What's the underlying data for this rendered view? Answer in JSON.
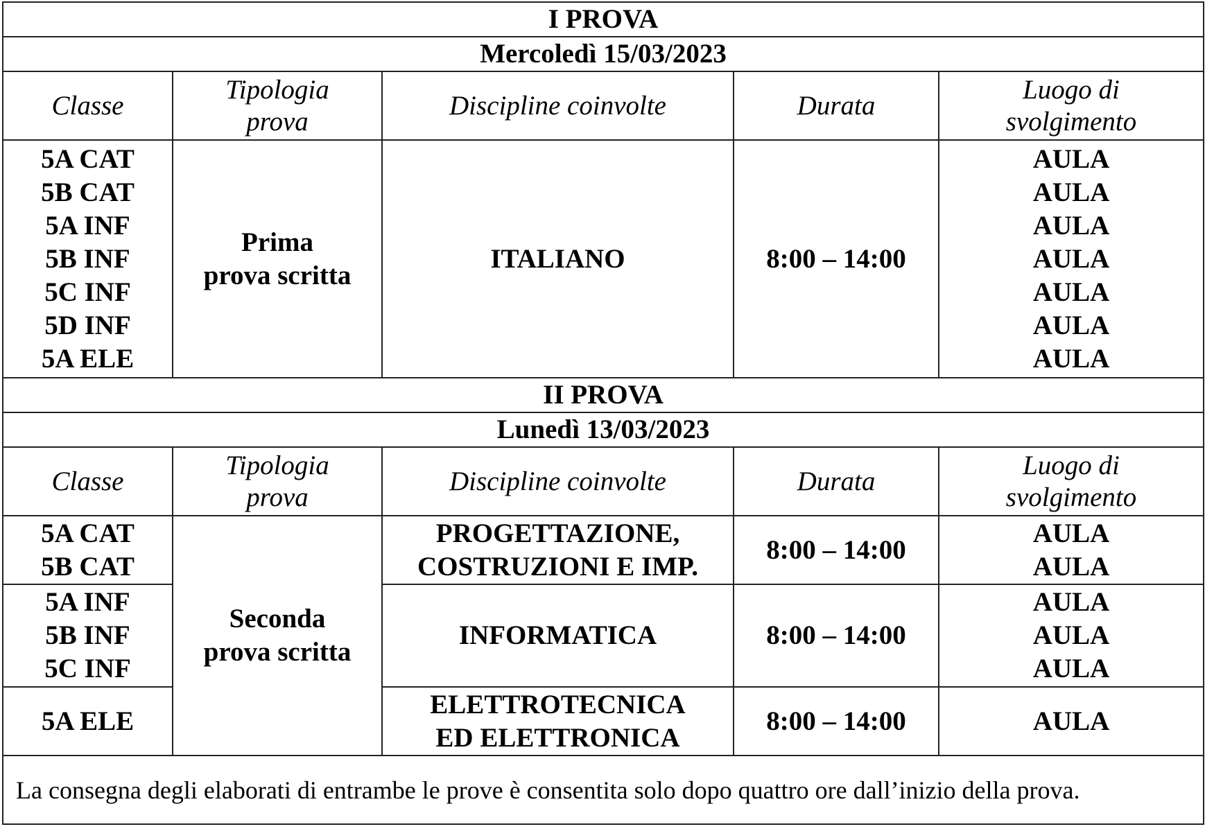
{
  "columns": [
    "Classe",
    "Tipologia prova",
    "Discipline coinvolte",
    "Durata",
    "Luogo di svolgimento"
  ],
  "header_lines": {
    "tipologia": [
      "Tipologia",
      "prova"
    ],
    "luogo": [
      "Luogo di",
      "svolgimento"
    ]
  },
  "prova1": {
    "title": "I PROVA",
    "date": "Mercoledì 15/03/2023",
    "classes": [
      "5A CAT",
      "5B CAT",
      "5A INF",
      "5B INF",
      "5C INF",
      "5D INF",
      "5A ELE"
    ],
    "tipologia": [
      "Prima",
      "prova scritta"
    ],
    "discipline": "ITALIANO",
    "durata": "8:00 – 14:00",
    "luogo": [
      "AULA",
      "AULA",
      "AULA",
      "AULA",
      "AULA",
      "AULA",
      "AULA"
    ]
  },
  "prova2": {
    "title": "II PROVA",
    "date": "Lunedì 13/03/2023",
    "tipologia": [
      "Seconda",
      "prova scritta"
    ],
    "groups": [
      {
        "classes": [
          "5A CAT",
          "5B CAT"
        ],
        "discipline": [
          "PROGETTAZIONE,",
          "COSTRUZIONI E IMP."
        ],
        "durata": "8:00 – 14:00",
        "luogo": [
          "AULA",
          "AULA"
        ]
      },
      {
        "classes": [
          "5A INF",
          "5B INF",
          "5C INF"
        ],
        "discipline": [
          "INFORMATICA"
        ],
        "durata": "8:00 – 14:00",
        "luogo": [
          "AULA",
          "AULA",
          "AULA"
        ]
      },
      {
        "classes": [
          "5A ELE"
        ],
        "discipline": [
          "ELETTROTECNICA",
          "ED ELETTRONICA"
        ],
        "durata": "8:00 – 14:00",
        "luogo": [
          "AULA"
        ]
      }
    ]
  },
  "note": "La consegna degli elaborati di entrambe le prove è consentita solo dopo quattro ore dall’inizio della prova."
}
